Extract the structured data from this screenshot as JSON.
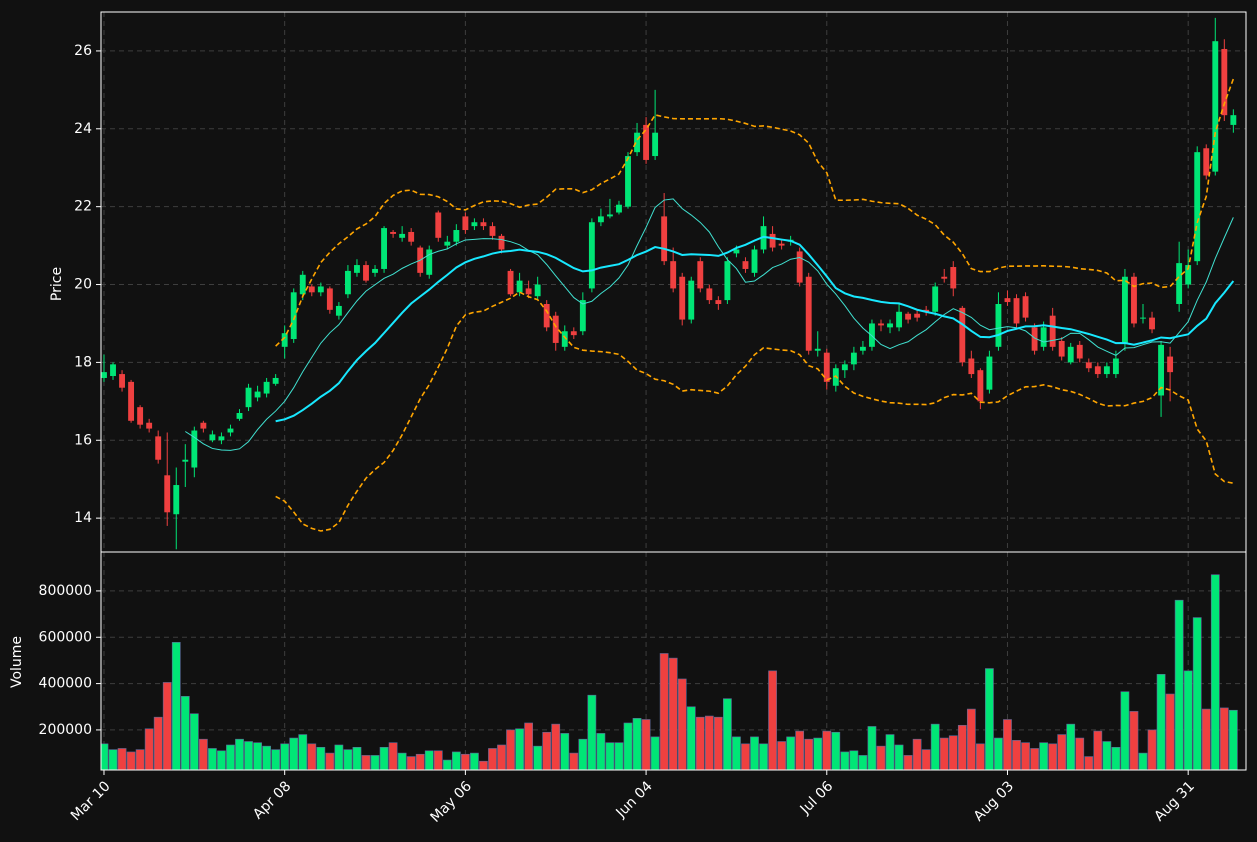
{
  "chart_data": {
    "type": "candlestick",
    "x": [
      "Mar 10",
      null,
      null,
      null,
      null,
      null,
      null,
      null,
      null,
      null,
      null,
      null,
      null,
      null,
      null,
      null,
      null,
      null,
      null,
      null,
      "Apr 08",
      null,
      null,
      null,
      null,
      null,
      null,
      null,
      null,
      null,
      null,
      null,
      null,
      null,
      null,
      null,
      null,
      null,
      null,
      null,
      "May 06",
      null,
      null,
      null,
      null,
      null,
      null,
      null,
      null,
      null,
      null,
      null,
      null,
      null,
      null,
      null,
      null,
      null,
      null,
      null,
      "Jun 04",
      null,
      null,
      null,
      null,
      null,
      null,
      null,
      null,
      null,
      null,
      null,
      null,
      null,
      null,
      null,
      null,
      null,
      null,
      null,
      "Jul 06",
      null,
      null,
      null,
      null,
      null,
      null,
      null,
      null,
      null,
      null,
      null,
      null,
      null,
      null,
      null,
      null,
      null,
      null,
      null,
      "Aug 03",
      null,
      null,
      null,
      null,
      null,
      null,
      null,
      null,
      null,
      null,
      null,
      null,
      null,
      null,
      null,
      null,
      null,
      null,
      null,
      "Aug 31",
      null,
      null,
      null,
      null,
      null
    ],
    "xlim": [
      -0.33,
      126.4
    ],
    "open": [
      17.6,
      17.65,
      17.7,
      17.5,
      16.85,
      16.45,
      16.1,
      15.1,
      14.1,
      15.45,
      15.3,
      16.45,
      16.0,
      16.0,
      16.2,
      16.55,
      16.85,
      17.1,
      17.2,
      17.45,
      18.4,
      18.6,
      19.75,
      19.95,
      19.8,
      19.9,
      19.2,
      19.75,
      20.3,
      20.5,
      20.3,
      20.4,
      21.35,
      21.2,
      21.35,
      20.95,
      20.25,
      21.85,
      21.0,
      21.1,
      21.75,
      21.5,
      21.6,
      21.5,
      21.25,
      20.35,
      19.8,
      19.9,
      19.7,
      19.5,
      19.2,
      18.4,
      18.8,
      18.8,
      19.9,
      21.6,
      21.75,
      21.85,
      22.0,
      23.4,
      24.1,
      23.3,
      21.75,
      20.6,
      20.2,
      19.1,
      20.6,
      19.9,
      19.6,
      19.6,
      20.8,
      20.6,
      20.3,
      20.9,
      21.3,
      21.05,
      21.1,
      20.85,
      20.2,
      18.3,
      18.25,
      17.4,
      17.8,
      17.95,
      18.3,
      18.4,
      19.0,
      18.9,
      18.9,
      19.25,
      19.25,
      19.35,
      19.3,
      20.2,
      20.45,
      19.4,
      18.1,
      17.8,
      17.3,
      18.4,
      19.65,
      19.65,
      19.7,
      18.9,
      18.4,
      19.2,
      18.55,
      18.0,
      18.45,
      18.0,
      17.9,
      17.7,
      17.7,
      18.5,
      20.2,
      19.15,
      19.15,
      17.15,
      18.15,
      19.5,
      20.0,
      20.6,
      23.5,
      22.9,
      26.05,
      24.1
    ],
    "high": [
      18.2,
      18.0,
      17.8,
      17.55,
      16.9,
      16.55,
      16.25,
      16.2,
      15.3,
      15.9,
      16.35,
      16.5,
      16.25,
      16.2,
      16.4,
      16.8,
      17.45,
      17.4,
      17.6,
      17.7,
      18.95,
      19.9,
      20.35,
      20.0,
      20.05,
      19.95,
      19.55,
      20.5,
      20.65,
      20.6,
      20.5,
      21.5,
      21.4,
      21.5,
      21.45,
      21.0,
      21.0,
      21.9,
      21.25,
      21.55,
      21.85,
      21.7,
      21.7,
      21.6,
      21.3,
      20.4,
      20.3,
      20.1,
      20.2,
      19.6,
      19.3,
      18.95,
      18.9,
      19.8,
      21.7,
      21.95,
      22.2,
      22.15,
      23.4,
      24.15,
      24.3,
      25.0,
      22.35,
      20.95,
      20.3,
      20.2,
      20.7,
      20.0,
      19.7,
      20.7,
      21.0,
      20.7,
      21.0,
      21.75,
      21.5,
      21.15,
      21.25,
      20.95,
      20.3,
      18.8,
      18.35,
      17.95,
      18.05,
      18.4,
      18.55,
      19.1,
      19.1,
      19.1,
      19.5,
      19.3,
      19.35,
      19.45,
      20.05,
      20.4,
      20.6,
      19.45,
      18.3,
      17.85,
      18.3,
      19.8,
      19.85,
      19.75,
      19.8,
      19.0,
      19.05,
      19.4,
      18.65,
      18.5,
      18.55,
      18.1,
      18.0,
      18.0,
      18.3,
      20.4,
      20.3,
      19.5,
      19.3,
      18.55,
      18.4,
      21.1,
      20.9,
      23.55,
      23.6,
      26.85,
      26.3,
      24.5
    ],
    "low": [
      17.5,
      17.55,
      17.25,
      16.45,
      16.3,
      16.2,
      15.4,
      13.8,
      13.2,
      14.8,
      15.05,
      16.2,
      15.95,
      15.9,
      16.1,
      16.5,
      16.75,
      17.0,
      17.1,
      17.4,
      18.1,
      18.5,
      19.6,
      19.7,
      19.7,
      19.25,
      19.1,
      19.65,
      20.2,
      20.05,
      20.2,
      20.3,
      21.2,
      21.1,
      21.0,
      20.2,
      20.15,
      21.1,
      20.9,
      21.0,
      21.3,
      21.4,
      21.4,
      21.15,
      20.8,
      19.7,
      19.7,
      19.65,
      19.6,
      18.8,
      18.3,
      18.3,
      18.6,
      18.7,
      19.8,
      21.5,
      21.7,
      21.8,
      21.95,
      23.3,
      23.1,
      23.2,
      20.5,
      19.8,
      18.95,
      19.0,
      19.8,
      19.5,
      19.35,
      19.5,
      20.7,
      20.3,
      20.2,
      20.8,
      20.85,
      20.9,
      21.0,
      19.95,
      18.2,
      18.15,
      17.3,
      17.25,
      17.6,
      17.8,
      18.2,
      18.3,
      18.8,
      18.75,
      18.8,
      19.0,
      19.05,
      19.2,
      19.2,
      20.05,
      19.7,
      17.9,
      17.6,
      16.8,
      17.2,
      18.3,
      19.45,
      18.9,
      19.05,
      18.2,
      18.3,
      18.3,
      18.05,
      17.95,
      18.0,
      17.75,
      17.6,
      17.6,
      17.6,
      18.3,
      18.9,
      19.0,
      18.75,
      16.6,
      17.0,
      19.3,
      19.9,
      20.5,
      22.7,
      22.8,
      24.2,
      23.9
    ],
    "close": [
      17.75,
      17.95,
      17.35,
      16.5,
      16.4,
      16.3,
      15.5,
      14.15,
      14.85,
      15.5,
      16.25,
      16.3,
      16.15,
      16.1,
      16.3,
      16.7,
      17.35,
      17.25,
      17.5,
      17.6,
      18.75,
      19.8,
      20.25,
      19.8,
      19.95,
      19.35,
      19.45,
      20.35,
      20.5,
      20.1,
      20.4,
      21.45,
      21.3,
      21.3,
      21.1,
      20.3,
      20.9,
      21.2,
      21.1,
      21.4,
      21.4,
      21.6,
      21.5,
      21.25,
      20.9,
      19.75,
      20.1,
      19.75,
      20.0,
      18.9,
      18.5,
      18.8,
      18.7,
      19.6,
      21.6,
      21.75,
      21.8,
      22.05,
      23.3,
      23.9,
      23.2,
      23.9,
      20.6,
      19.9,
      19.1,
      20.1,
      19.9,
      19.6,
      19.5,
      20.6,
      20.9,
      20.4,
      20.9,
      21.5,
      20.95,
      21.0,
      21.15,
      20.05,
      18.3,
      18.35,
      17.5,
      17.85,
      17.95,
      18.25,
      18.4,
      19.0,
      18.95,
      19.0,
      19.3,
      19.1,
      19.15,
      19.3,
      19.95,
      20.15,
      19.9,
      18.0,
      17.7,
      17.0,
      18.15,
      19.5,
      19.55,
      19.0,
      19.15,
      18.3,
      18.9,
      18.4,
      18.15,
      18.4,
      18.1,
      17.85,
      17.7,
      17.9,
      18.1,
      20.2,
      19.0,
      19.15,
      18.85,
      18.45,
      17.75,
      20.55,
      20.5,
      23.4,
      22.8,
      26.25,
      24.35,
      24.35
    ],
    "volume": [
      140000,
      115000,
      120000,
      105000,
      115000,
      205000,
      255000,
      405000,
      578000,
      345000,
      270000,
      160000,
      120000,
      110000,
      135000,
      160000,
      150000,
      145000,
      130000,
      115000,
      140000,
      165000,
      180000,
      140000,
      125000,
      100000,
      135000,
      115000,
      125000,
      90000,
      90000,
      125000,
      145000,
      100000,
      85000,
      95000,
      110000,
      110000,
      70000,
      105000,
      95000,
      100000,
      65000,
      120000,
      135000,
      200000,
      205000,
      230000,
      130000,
      190000,
      225000,
      185000,
      100000,
      160000,
      350000,
      185000,
      145000,
      145000,
      230000,
      250000,
      245000,
      170000,
      530000,
      510000,
      420000,
      300000,
      255000,
      260000,
      255000,
      335000,
      170000,
      140000,
      170000,
      140000,
      455000,
      150000,
      170000,
      195000,
      160000,
      165000,
      195000,
      190000,
      105000,
      110000,
      90000,
      215000,
      130000,
      180000,
      135000,
      90000,
      160000,
      115000,
      225000,
      165000,
      175000,
      220000,
      290000,
      140000,
      465000,
      165000,
      245000,
      155000,
      145000,
      120000,
      145000,
      140000,
      180000,
      225000,
      165000,
      85000,
      195000,
      150000,
      125000,
      365000,
      280000,
      100000,
      200000,
      440000,
      355000,
      760000,
      455000,
      685000,
      290000,
      870000,
      295000,
      285000
    ],
    "ylabel": "Price",
    "ylim": [
      13.13,
      27.0
    ],
    "yticks": [
      14,
      16,
      18,
      20,
      22,
      24,
      26
    ],
    "volume_label": "Volume",
    "volume_ylim": [
      27000,
      968000
    ],
    "volume_yticks": [
      200000,
      400000,
      600000,
      800000
    ],
    "up_color": "#00e676",
    "down_color": "#ef4040",
    "grid": true,
    "moving_averages": [
      {
        "window": 10,
        "color": "#40e0d0"
      },
      {
        "window": 20,
        "color": "#18e8ff"
      }
    ],
    "bollinger": {
      "window": 20,
      "k": 2,
      "color": "#ffa500"
    }
  }
}
